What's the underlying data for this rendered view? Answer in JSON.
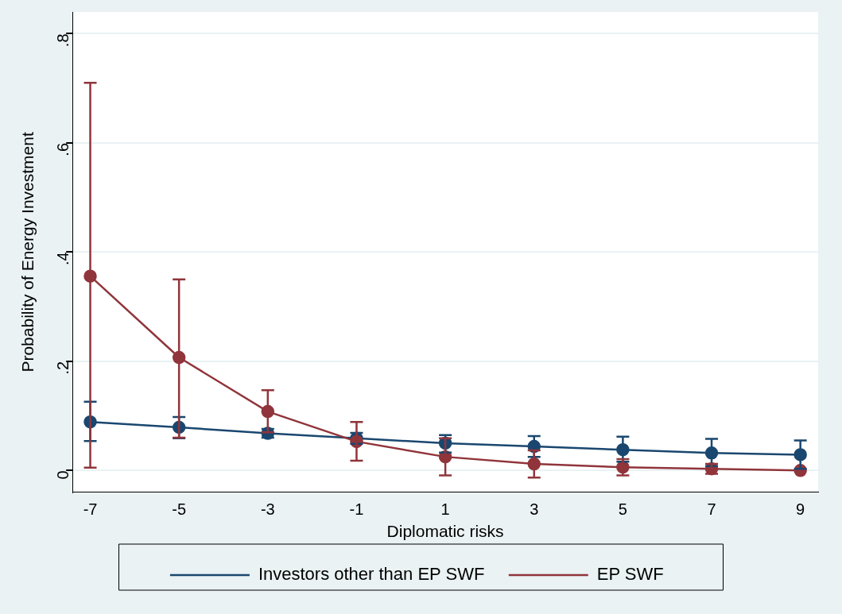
{
  "chart_data": {
    "type": "line",
    "xlabel": "Diplomatic risks",
    "ylabel": "Probability of Energy Investment",
    "x": [
      -7,
      -5,
      -3,
      -1,
      1,
      3,
      5,
      7,
      9
    ],
    "series": [
      {
        "name": "Investors other than EP SWF",
        "color": "#1a476f",
        "values": [
          0.089,
          0.079,
          0.068,
          0.059,
          0.05,
          0.044,
          0.038,
          0.032,
          0.029
        ],
        "errors": [
          [
            0.054,
            0.126
          ],
          [
            0.059,
            0.098
          ],
          [
            0.06,
            0.076
          ],
          [
            0.049,
            0.069
          ],
          [
            0.033,
            0.065
          ],
          [
            0.025,
            0.063
          ],
          [
            0.016,
            0.062
          ],
          [
            0.008,
            0.058
          ],
          [
            0.003,
            0.055
          ]
        ]
      },
      {
        "name": "EP SWF",
        "color": "#90353b",
        "values": [
          0.356,
          0.207,
          0.108,
          0.053,
          0.025,
          0.012,
          0.006,
          0.003,
          0.0
        ],
        "errors": [
          [
            0.005,
            0.71
          ],
          [
            0.06,
            0.35
          ],
          [
            0.07,
            0.147
          ],
          [
            0.018,
            0.089
          ],
          [
            -0.009,
            0.059
          ],
          [
            -0.013,
            0.037
          ],
          [
            -0.009,
            0.021
          ],
          [
            -0.006,
            0.012
          ],
          null
        ]
      }
    ],
    "xlim": [
      -7.4,
      9.4
    ],
    "xticks": [
      -7,
      -5,
      -3,
      -1,
      1,
      3,
      5,
      7,
      9
    ],
    "ylim": [
      -0.04,
      0.84
    ],
    "yticks": [
      0,
      {
        "value": 0.2,
        "label": ".2"
      },
      {
        "value": 0.4,
        "label": ".4"
      },
      {
        "value": 0.6,
        "label": ".6"
      },
      {
        "value": 0.8,
        "label": ".8"
      }
    ],
    "grid": "y",
    "legend": "bottom",
    "marker": "circle",
    "line_style": "solid"
  }
}
